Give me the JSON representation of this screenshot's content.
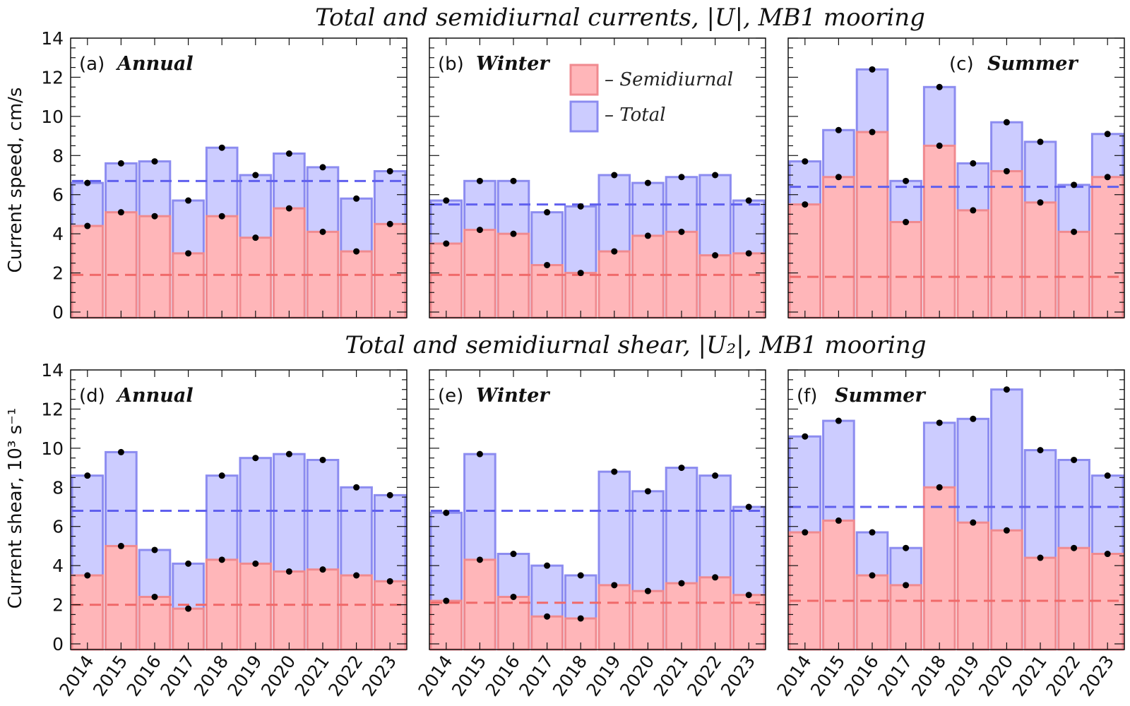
{
  "colors": {
    "total_fill": "#ccccff",
    "total_edge": "#8c8cf0",
    "semi_fill": "#ffb6b9",
    "semi_edge": "#f08a8f",
    "total_mean_line": "#6060ee",
    "semi_mean_line": "#f06a6a",
    "dot": "#000000"
  },
  "rows": [
    {
      "title": "Total and semidiurnal currents, |U|, MB1 mooring",
      "ylabel": "Current speed, cm/s"
    },
    {
      "title": "Total and semidiurnal shear, |U₂|, MB1 mooring",
      "ylabel": "Current shear, 10³ s⁻¹"
    }
  ],
  "legend": {
    "semi_label": "– Semidiurnal",
    "total_label": "– Total"
  },
  "chart_data": [
    {
      "type": "bar",
      "panel": "(a)",
      "label": "Annual",
      "categories": [
        "2014",
        "2015",
        "2016",
        "2017",
        "2018",
        "2019",
        "2020",
        "2021",
        "2022",
        "2023"
      ],
      "series": [
        {
          "name": "Total",
          "values": [
            6.6,
            7.6,
            7.7,
            5.7,
            8.4,
            7.0,
            8.1,
            7.4,
            5.8,
            7.2
          ]
        },
        {
          "name": "Semidiurnal",
          "values": [
            4.4,
            5.1,
            4.9,
            3.0,
            4.9,
            3.8,
            5.3,
            4.1,
            3.1,
            4.5
          ]
        }
      ],
      "mean_total": 6.7,
      "mean_semidiurnal": 1.9,
      "ylim": [
        0,
        14
      ],
      "yticks": [
        0,
        2,
        4,
        6,
        8,
        10,
        12,
        14
      ]
    },
    {
      "type": "bar",
      "panel": "(b)",
      "label": "Winter",
      "categories": [
        "2014",
        "2015",
        "2016",
        "2017",
        "2018",
        "2019",
        "2020",
        "2021",
        "2022",
        "2023"
      ],
      "series": [
        {
          "name": "Total",
          "values": [
            5.7,
            6.7,
            6.7,
            5.1,
            5.4,
            7.0,
            6.6,
            6.9,
            7.0,
            5.7
          ]
        },
        {
          "name": "Semidiurnal",
          "values": [
            3.5,
            4.2,
            4.0,
            2.4,
            2.0,
            3.1,
            3.9,
            4.1,
            2.9,
            3.0
          ]
        }
      ],
      "mean_total": 5.5,
      "mean_semidiurnal": 1.9,
      "ylim": [
        0,
        14
      ],
      "yticks": [
        0,
        2,
        4,
        6,
        8,
        10,
        12,
        14
      ]
    },
    {
      "type": "bar",
      "panel": "(c)",
      "label": "Summer",
      "categories": [
        "2014",
        "2015",
        "2016",
        "2017",
        "2018",
        "2019",
        "2020",
        "2021",
        "2022",
        "2023"
      ],
      "series": [
        {
          "name": "Total",
          "values": [
            7.7,
            9.3,
            12.4,
            6.7,
            11.5,
            7.6,
            9.7,
            8.7,
            6.5,
            9.1
          ]
        },
        {
          "name": "Semidiurnal",
          "values": [
            5.5,
            6.9,
            9.2,
            4.6,
            8.5,
            5.2,
            7.2,
            5.6,
            4.1,
            6.9
          ]
        }
      ],
      "mean_total": 6.4,
      "mean_semidiurnal": 1.8,
      "ylim": [
        0,
        14
      ],
      "yticks": [
        0,
        2,
        4,
        6,
        8,
        10,
        12,
        14
      ]
    },
    {
      "type": "bar",
      "panel": "(d)",
      "label": "Annual",
      "categories": [
        "2014",
        "2015",
        "2016",
        "2017",
        "2018",
        "2019",
        "2020",
        "2021",
        "2022",
        "2023"
      ],
      "series": [
        {
          "name": "Total",
          "values": [
            8.6,
            9.8,
            4.8,
            4.1,
            8.6,
            9.5,
            9.7,
            9.4,
            8.0,
            7.6
          ]
        },
        {
          "name": "Semidiurnal",
          "values": [
            3.5,
            5.0,
            2.4,
            1.8,
            4.3,
            4.1,
            3.7,
            3.8,
            3.5,
            3.2
          ]
        }
      ],
      "mean_total": 6.8,
      "mean_semidiurnal": 2.0,
      "ylim": [
        0,
        14
      ],
      "yticks": [
        0,
        2,
        4,
        6,
        8,
        10,
        12,
        14
      ]
    },
    {
      "type": "bar",
      "panel": "(e)",
      "label": "Winter",
      "categories": [
        "2014",
        "2015",
        "2016",
        "2017",
        "2018",
        "2019",
        "2020",
        "2021",
        "2022",
        "2023"
      ],
      "series": [
        {
          "name": "Total",
          "values": [
            6.7,
            9.7,
            4.6,
            4.0,
            3.5,
            8.8,
            7.8,
            9.0,
            8.6,
            7.0
          ]
        },
        {
          "name": "Semidiurnal",
          "values": [
            2.2,
            4.3,
            2.4,
            1.4,
            1.3,
            3.0,
            2.7,
            3.1,
            3.4,
            2.5
          ]
        }
      ],
      "mean_total": 6.8,
      "mean_semidiurnal": 2.1,
      "ylim": [
        0,
        14
      ],
      "yticks": [
        0,
        2,
        4,
        6,
        8,
        10,
        12,
        14
      ]
    },
    {
      "type": "bar",
      "panel": "(f)",
      "label": "Summer",
      "categories": [
        "2014",
        "2015",
        "2016",
        "2017",
        "2018",
        "2019",
        "2020",
        "2021",
        "2022",
        "2023"
      ],
      "series": [
        {
          "name": "Total",
          "values": [
            10.6,
            11.4,
            5.7,
            4.9,
            11.3,
            11.5,
            13.0,
            9.9,
            9.4,
            8.6
          ]
        },
        {
          "name": "Semidiurnal",
          "values": [
            5.7,
            6.3,
            3.5,
            3.0,
            8.0,
            6.2,
            5.8,
            4.4,
            4.9,
            4.6
          ]
        }
      ],
      "mean_total": 7.0,
      "mean_semidiurnal": 2.2,
      "ylim": [
        0,
        14
      ],
      "yticks": [
        0,
        2,
        4,
        6,
        8,
        10,
        12,
        14
      ]
    }
  ]
}
